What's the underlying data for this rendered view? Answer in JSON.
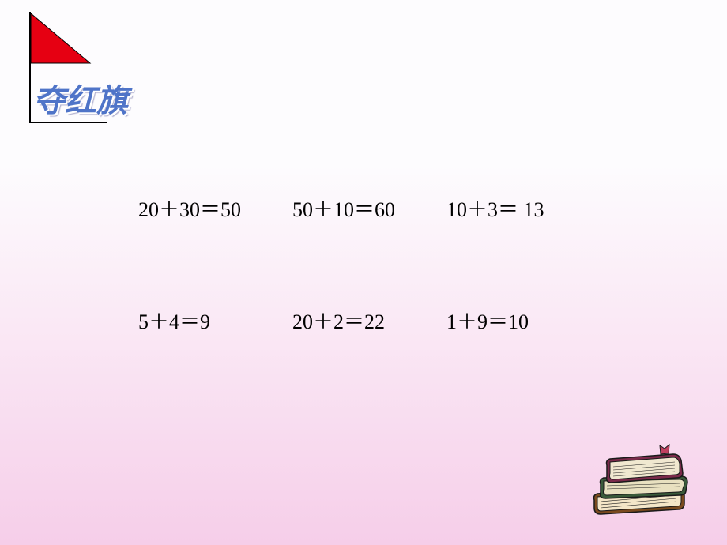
{
  "background": {
    "gradient_top": "#fdfcfe",
    "gradient_bottom": "#f6cee9"
  },
  "flag": {
    "triangle_fill": "#e60012",
    "pole_color": "#000000",
    "pole_height": 140,
    "flag_width": 75,
    "flag_height": 65
  },
  "title": {
    "text": "夺红旗",
    "color": "#4f74c8",
    "fontsize": 40
  },
  "equations": {
    "text_color": "#000000",
    "fontsize": 26,
    "rows": [
      [
        {
          "lhs": "20＋30＝",
          "rhs": "50"
        },
        {
          "lhs": "50＋10＝",
          "rhs": "60"
        },
        {
          "lhs": "10＋3＝",
          "rhs": " 13"
        }
      ],
      [
        {
          "lhs": "5＋4＝",
          "rhs": "9"
        },
        {
          "lhs": "20＋2＝",
          "rhs": "22"
        },
        {
          "lhs": "1＋9＝",
          "rhs": "10"
        }
      ]
    ]
  },
  "books_icon": {
    "colors": {
      "bottom_book": "#7a4a1e",
      "bottom_pages": "#f4e6c8",
      "middle_book": "#3a5a3a",
      "middle_pages": "#e8e0c0",
      "top_book": "#7a2a4a",
      "top_pages": "#f0e8d0",
      "bookmark": "#c04060",
      "outline": "#1a1a1a"
    },
    "width": 135,
    "height": 100
  }
}
